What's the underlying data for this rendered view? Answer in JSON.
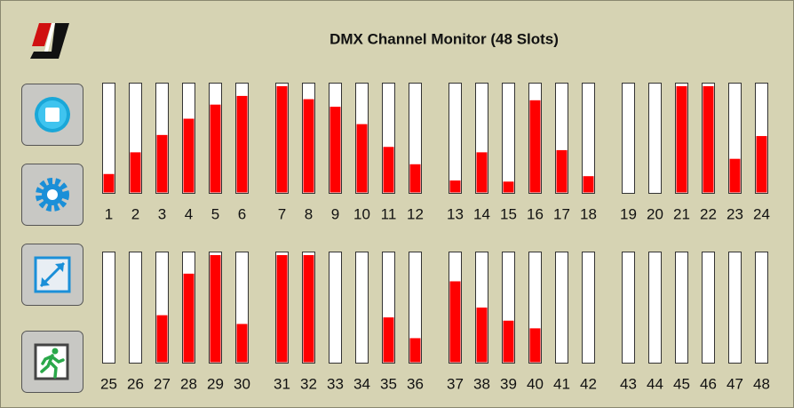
{
  "header": {
    "title": "DMX Channel Monitor (48 Slots)"
  },
  "channels": [
    {
      "label": "1",
      "level": 17
    },
    {
      "label": "2",
      "level": 37
    },
    {
      "label": "3",
      "level": 53
    },
    {
      "label": "4",
      "level": 68
    },
    {
      "label": "5",
      "level": 81
    },
    {
      "label": "6",
      "level": 89
    },
    {
      "label": "7",
      "level": 98
    },
    {
      "label": "8",
      "level": 86
    },
    {
      "label": "9",
      "level": 79
    },
    {
      "label": "10",
      "level": 63
    },
    {
      "label": "11",
      "level": 42
    },
    {
      "label": "12",
      "level": 26
    },
    {
      "label": "13",
      "level": 11
    },
    {
      "label": "14",
      "level": 37
    },
    {
      "label": "15",
      "level": 10
    },
    {
      "label": "16",
      "level": 85
    },
    {
      "label": "17",
      "level": 39
    },
    {
      "label": "18",
      "level": 15
    },
    {
      "label": "19",
      "level": 0
    },
    {
      "label": "20",
      "level": 0
    },
    {
      "label": "21",
      "level": 98
    },
    {
      "label": "22",
      "level": 98
    },
    {
      "label": "23",
      "level": 31
    },
    {
      "label": "24",
      "level": 52
    },
    {
      "label": "25",
      "level": 0
    },
    {
      "label": "26",
      "level": 0
    },
    {
      "label": "27",
      "level": 43
    },
    {
      "label": "28",
      "level": 81
    },
    {
      "label": "29",
      "level": 98
    },
    {
      "label": "30",
      "level": 35
    },
    {
      "label": "31",
      "level": 98
    },
    {
      "label": "32",
      "level": 98
    },
    {
      "label": "33",
      "level": 0
    },
    {
      "label": "34",
      "level": 0
    },
    {
      "label": "35",
      "level": 41
    },
    {
      "label": "36",
      "level": 22
    },
    {
      "label": "37",
      "level": 74
    },
    {
      "label": "38",
      "level": 50
    },
    {
      "label": "39",
      "level": 38
    },
    {
      "label": "40",
      "level": 31
    },
    {
      "label": "41",
      "level": 0
    },
    {
      "label": "42",
      "level": 0
    },
    {
      "label": "43",
      "level": 0
    },
    {
      "label": "44",
      "level": 0
    },
    {
      "label": "45",
      "level": 0
    },
    {
      "label": "46",
      "level": 0
    },
    {
      "label": "47",
      "level": 0
    },
    {
      "label": "48",
      "level": 0
    }
  ]
}
